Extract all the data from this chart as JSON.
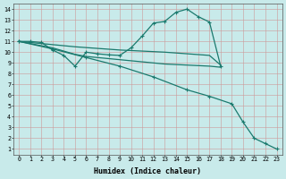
{
  "background_color": "#c8eaea",
  "grid_color": "#b0d0d0",
  "line_color": "#1a7a6e",
  "xlabel": "Humidex (Indice chaleur)",
  "xlim": [
    -0.5,
    23.5
  ],
  "ylim": [
    0.5,
    14.5
  ],
  "xticks": [
    0,
    1,
    2,
    3,
    4,
    5,
    6,
    7,
    8,
    9,
    10,
    11,
    12,
    13,
    14,
    15,
    16,
    17,
    18,
    19,
    20,
    21,
    22,
    23
  ],
  "yticks": [
    1,
    2,
    3,
    4,
    5,
    6,
    7,
    8,
    9,
    10,
    11,
    12,
    13,
    14
  ],
  "lines": [
    {
      "x": [
        0,
        1,
        2,
        3,
        4,
        5,
        6,
        7,
        8,
        9,
        10,
        11,
        12,
        13,
        14,
        15,
        16,
        17,
        18
      ],
      "y": [
        11,
        11,
        10.9,
        10.2,
        9.7,
        8.7,
        10.0,
        9.85,
        9.75,
        9.7,
        10.4,
        11.5,
        12.7,
        12.85,
        13.7,
        14.0,
        13.3,
        12.8,
        8.7
      ],
      "markers": true
    },
    {
      "x": [
        0,
        1,
        2,
        3,
        5,
        7,
        9,
        11,
        13,
        15,
        17,
        18
      ],
      "y": [
        11,
        10.9,
        10.8,
        10.7,
        10.5,
        10.35,
        10.2,
        10.1,
        10.0,
        9.85,
        9.7,
        8.8
      ],
      "markers": false
    },
    {
      "x": [
        0,
        1,
        2,
        3,
        4,
        5,
        6,
        7,
        8,
        9,
        10,
        11,
        12,
        13,
        14,
        15,
        16,
        17,
        18
      ],
      "y": [
        11,
        10.8,
        10.6,
        10.4,
        10.1,
        9.8,
        9.6,
        9.5,
        9.4,
        9.3,
        9.2,
        9.1,
        9.0,
        8.9,
        8.85,
        8.8,
        8.75,
        8.7,
        8.6
      ],
      "markers": false
    },
    {
      "x": [
        0,
        3,
        6,
        9,
        12,
        15,
        17,
        19,
        20,
        21,
        22,
        23
      ],
      "y": [
        11,
        10.3,
        9.5,
        8.7,
        7.7,
        6.5,
        5.9,
        5.2,
        3.5,
        2.0,
        1.5,
        1.0
      ],
      "markers": true
    }
  ]
}
